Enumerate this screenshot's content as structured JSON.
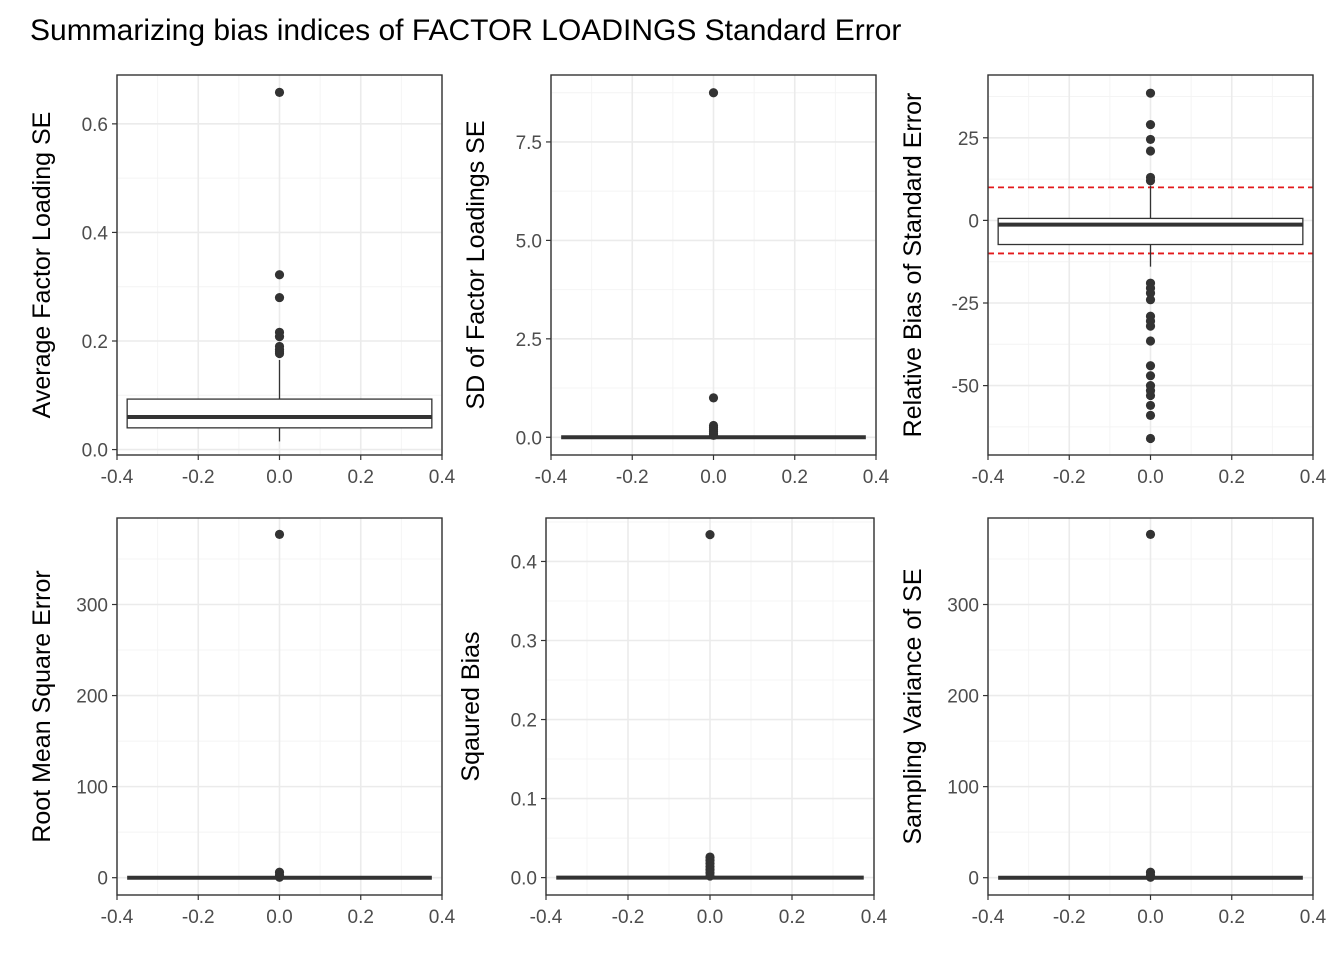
{
  "figure": {
    "title": "Summarizing bias indices of FACTOR LOADINGS Standard Error"
  },
  "colors": {
    "panel_border": "#333333",
    "grid_major": "#ebebeb",
    "grid_minor": "#f4f4f4",
    "box_line": "#333333",
    "outlier": "#333333",
    "reference_line": "#e31a1c",
    "tick_text": "#4d4d4d",
    "text": "#000000"
  },
  "chart_data": [
    {
      "type": "boxplot",
      "ylabel": "Average Factor Loading SE",
      "xlim": [
        -0.4,
        0.4
      ],
      "x_ticks": [
        "-0.4",
        "-0.2",
        "0.0",
        "0.2",
        "0.4"
      ],
      "ylim": [
        -0.01,
        0.69
      ],
      "y_ticks": [
        0.0,
        0.2,
        0.4,
        0.6
      ],
      "y_tick_labels": [
        "0.0",
        "0.2",
        "0.4",
        "0.6"
      ],
      "box": {
        "x": 0,
        "width": 0.75,
        "lower_whisker": 0.015,
        "q1": 0.04,
        "median": 0.06,
        "q3": 0.093,
        "upper_whisker": 0.165
      },
      "outliers": [
        0.658,
        0.322,
        0.28,
        0.216,
        0.208,
        0.19,
        0.184,
        0.18,
        0.177
      ],
      "reference_lines": []
    },
    {
      "type": "boxplot",
      "ylabel": "SD of Factor Loadings SE",
      "xlim": [
        -0.4,
        0.4
      ],
      "x_ticks": [
        "-0.4",
        "-0.2",
        "0.0",
        "0.2",
        "0.4"
      ],
      "ylim": [
        -0.45,
        9.2
      ],
      "y_ticks": [
        0.0,
        2.5,
        5.0,
        7.5
      ],
      "y_tick_labels": [
        "0.0",
        "2.5",
        "5.0",
        "7.5"
      ],
      "box": {
        "x": 0,
        "width": 0.75,
        "lower_whisker": 0.0,
        "q1": 0.0,
        "median": 0.0,
        "q3": 0.0,
        "upper_whisker": 0.0
      },
      "outliers": [
        8.75,
        1.0,
        0.3,
        0.25,
        0.2,
        0.15,
        0.1,
        0.05
      ],
      "reference_lines": []
    },
    {
      "type": "boxplot",
      "ylabel": "Relative Bias of Standard Error",
      "xlim": [
        -0.4,
        0.4
      ],
      "x_ticks": [
        "-0.4",
        "-0.2",
        "0.0",
        "0.2",
        "0.4"
      ],
      "ylim": [
        -71,
        44
      ],
      "y_ticks": [
        -50,
        -25,
        0,
        25
      ],
      "y_tick_labels": [
        "-50",
        "-25",
        "0",
        "25"
      ],
      "box": {
        "x": 0,
        "width": 0.75,
        "lower_whisker": -14,
        "q1": -7.3,
        "median": -1.3,
        "q3": 0.6,
        "upper_whisker": 10.5
      },
      "outliers": [
        38.5,
        29,
        24.5,
        21,
        13,
        12,
        -19,
        -20.5,
        -22,
        -24,
        -29,
        -30.5,
        -32,
        -36.5,
        -44,
        -47,
        -50,
        -51.5,
        -53,
        -56,
        -59,
        -66
      ],
      "reference_lines": [
        10,
        -10
      ]
    },
    {
      "type": "boxplot",
      "ylabel": "Root Mean Square Error",
      "xlim": [
        -0.4,
        0.4
      ],
      "x_ticks": [
        "-0.4",
        "-0.2",
        "0.0",
        "0.2",
        "0.4"
      ],
      "ylim": [
        -19,
        395
      ],
      "y_ticks": [
        0,
        100,
        200,
        300
      ],
      "y_tick_labels": [
        "0",
        "100",
        "200",
        "300"
      ],
      "box": {
        "x": 0,
        "width": 0.75,
        "lower_whisker": 0.0,
        "q1": 0.0,
        "median": 0.0,
        "q3": 0.0,
        "upper_whisker": 0.0
      },
      "outliers": [
        377,
        6,
        3,
        0.5
      ],
      "reference_lines": []
    },
    {
      "type": "boxplot",
      "ylabel": "Sqaured Bias",
      "xlim": [
        -0.4,
        0.4
      ],
      "x_ticks": [
        "-0.4",
        "-0.2",
        "0.0",
        "0.2",
        "0.4"
      ],
      "ylim": [
        -0.022,
        0.455
      ],
      "y_ticks": [
        0.0,
        0.1,
        0.2,
        0.3,
        0.4
      ],
      "y_tick_labels": [
        "0.0",
        "0.1",
        "0.2",
        "0.3",
        "0.4"
      ],
      "box": {
        "x": 0,
        "width": 0.75,
        "lower_whisker": 0.0,
        "q1": 0.0,
        "median": 0.0,
        "q3": 0.0,
        "upper_whisker": 0.0
      },
      "outliers": [
        0.434,
        0.026,
        0.022,
        0.018,
        0.014,
        0.01,
        0.006,
        0.002
      ],
      "reference_lines": []
    },
    {
      "type": "boxplot",
      "ylabel": "Sampling Variance of SE",
      "xlim": [
        -0.4,
        0.4
      ],
      "x_ticks": [
        "-0.4",
        "-0.2",
        "0.0",
        "0.2",
        "0.4"
      ],
      "ylim": [
        -19,
        395
      ],
      "y_ticks": [
        0,
        100,
        200,
        300
      ],
      "y_tick_labels": [
        "0",
        "100",
        "200",
        "300"
      ],
      "box": {
        "x": 0,
        "width": 0.75,
        "lower_whisker": 0.0,
        "q1": 0.0,
        "median": 0.0,
        "q3": 0.0,
        "upper_whisker": 0.0
      },
      "outliers": [
        377,
        6,
        3,
        0.5
      ],
      "reference_lines": []
    }
  ]
}
